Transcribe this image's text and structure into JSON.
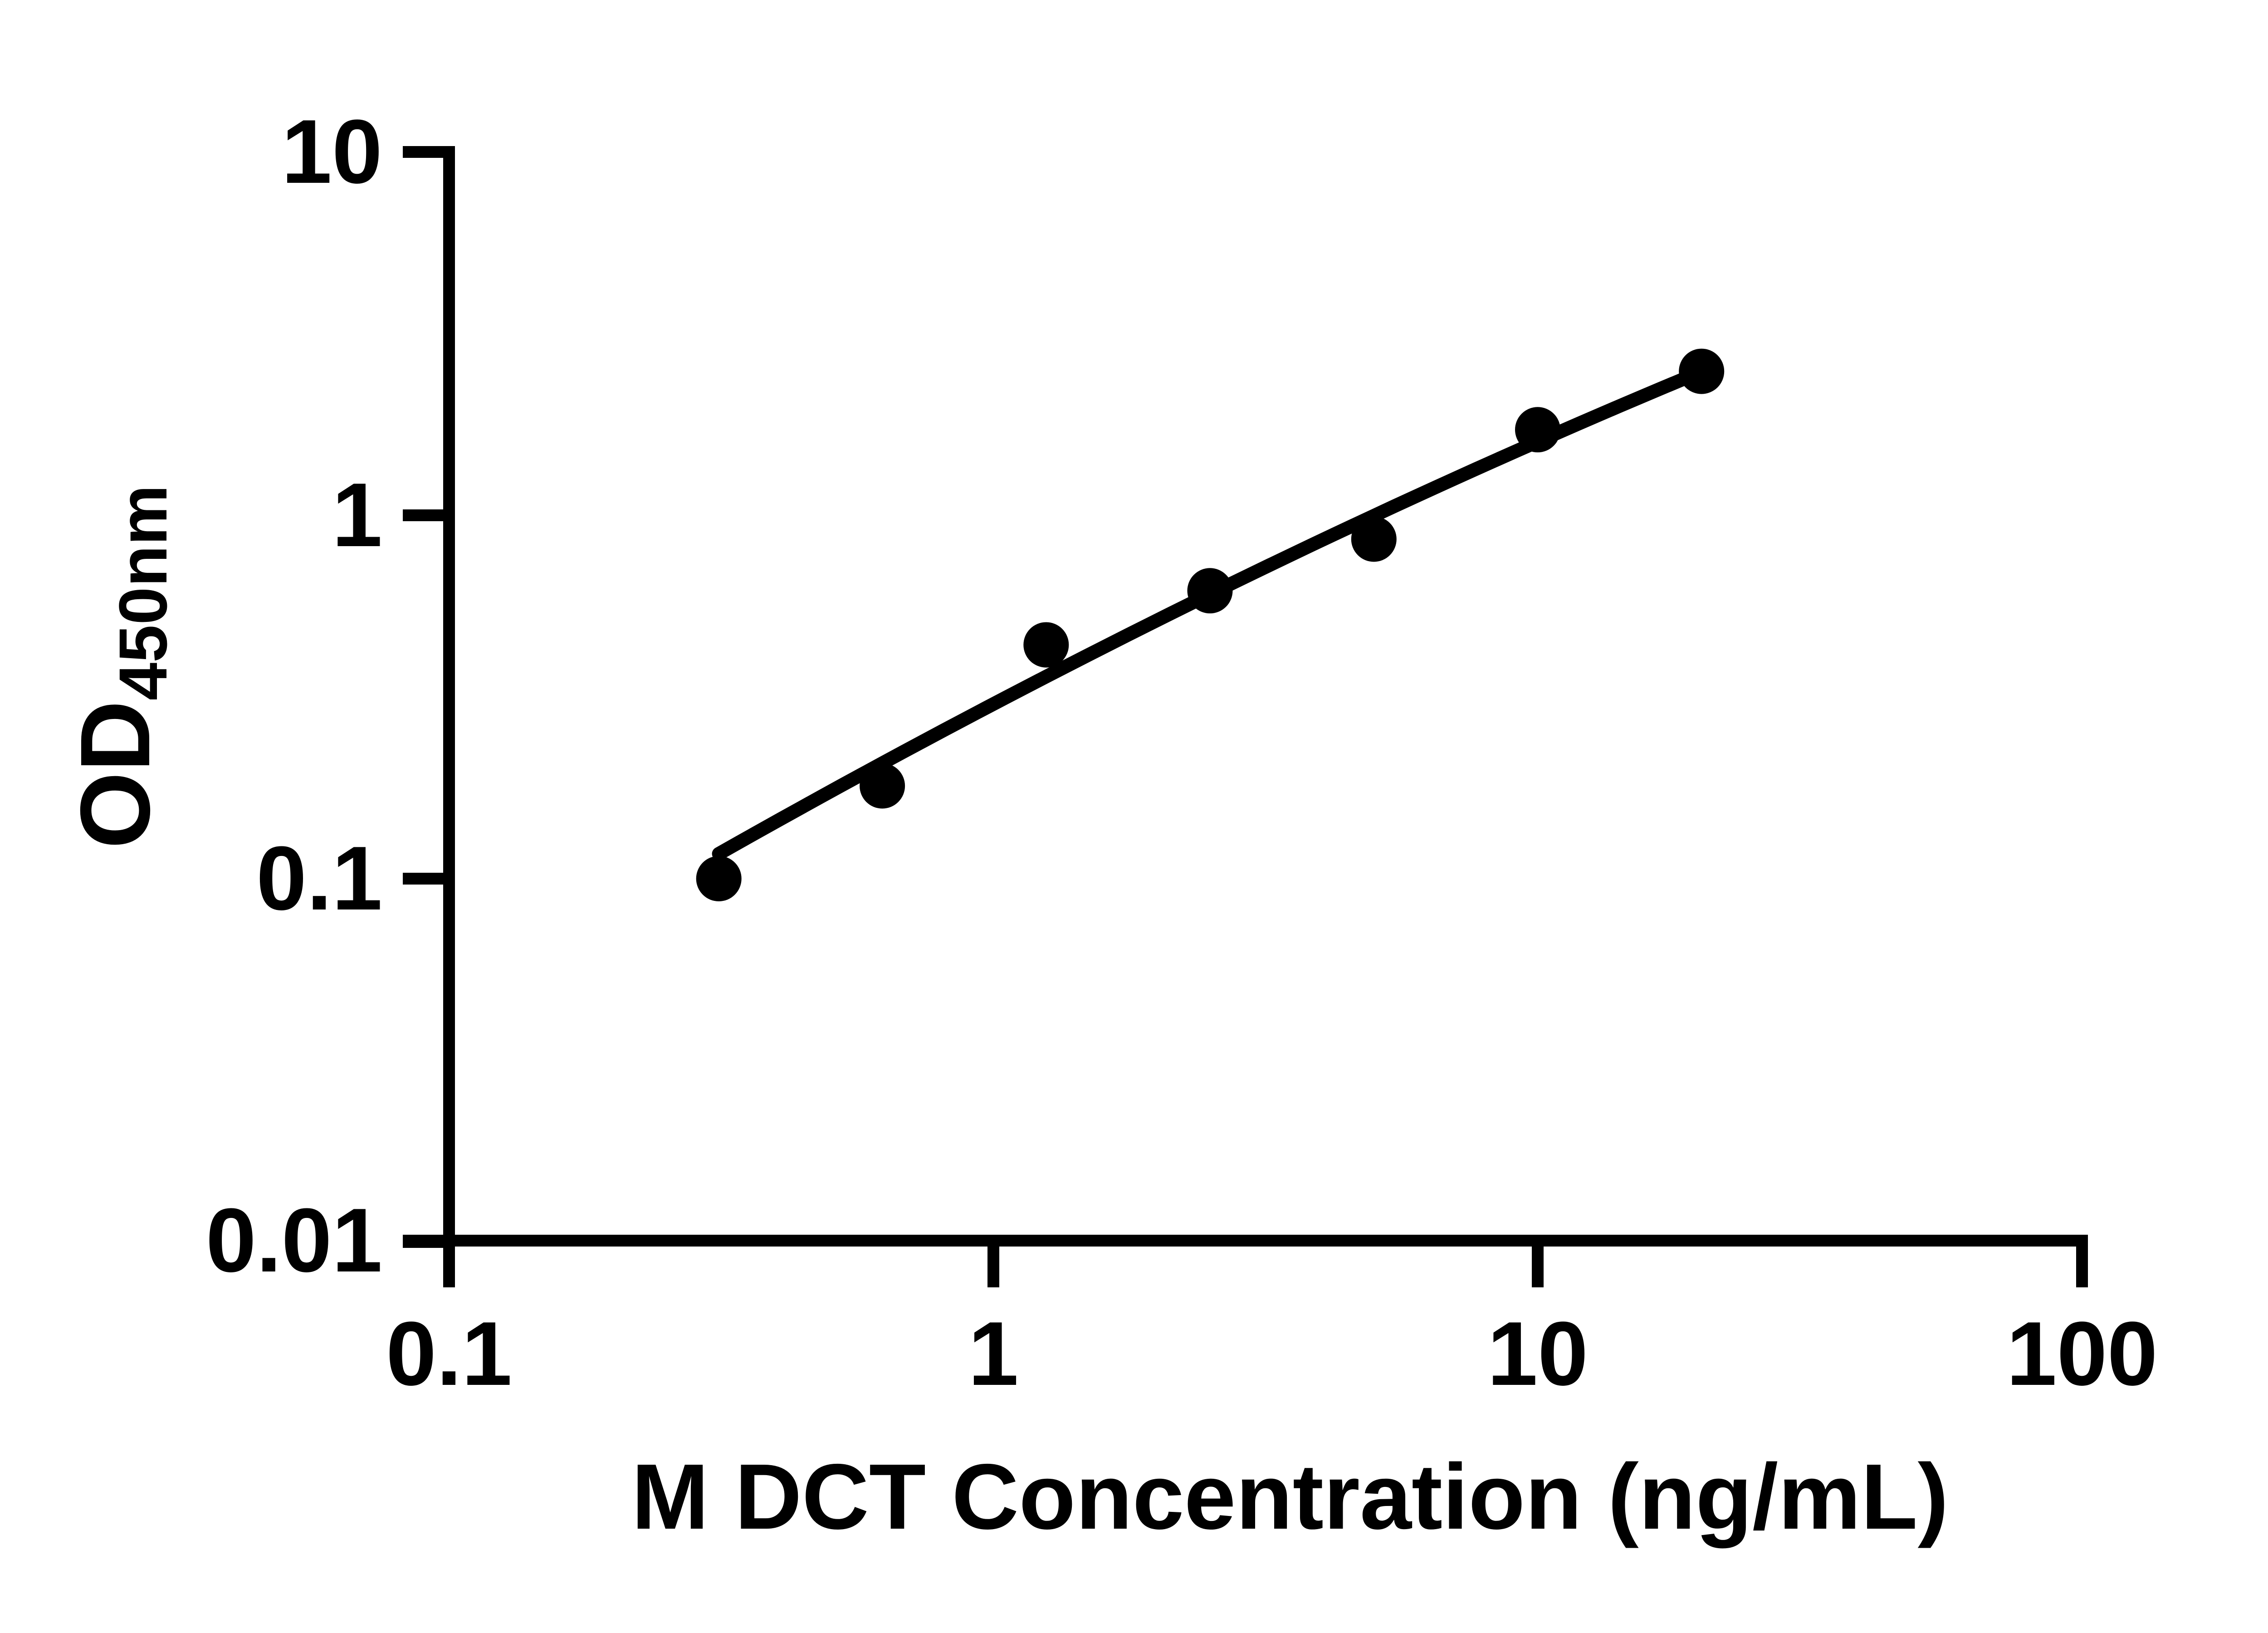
{
  "figure": {
    "background": "#ffffff",
    "ink": "#000000"
  },
  "chart_data": {
    "type": "scatter",
    "xlabel": "M DCT Concentration (ng/mL)",
    "ylabel_main": "OD",
    "ylabel_sub": "450nm",
    "x_scale": "log10",
    "y_scale": "log10",
    "xlim": [
      0.1,
      100
    ],
    "ylim": [
      0.01,
      10
    ],
    "x_ticks": [
      0.1,
      1,
      10,
      100
    ],
    "x_tick_labels": [
      "0.1",
      "1",
      "10",
      "100"
    ],
    "y_ticks": [
      10,
      1,
      0.1,
      0.01
    ],
    "y_tick_labels": [
      "10",
      "1",
      "0.1",
      "0.01"
    ],
    "grid": false,
    "legend_position": "none",
    "series": [
      {
        "name": "standard-curve-points",
        "marker": "filled-circle",
        "x": [
          0.313,
          0.625,
          1.25,
          2.5,
          5,
          10,
          20
        ],
        "y": [
          0.1,
          0.18,
          0.44,
          0.62,
          0.86,
          1.72,
          2.49
        ]
      }
    ],
    "trend_line": {
      "style": "solid",
      "loglog_quadratic_fit": {
        "a": -0.5194,
        "b": 0.7853,
        "c": -0.0629
      },
      "u_range": [
        -0.5045,
        1.301
      ]
    }
  }
}
